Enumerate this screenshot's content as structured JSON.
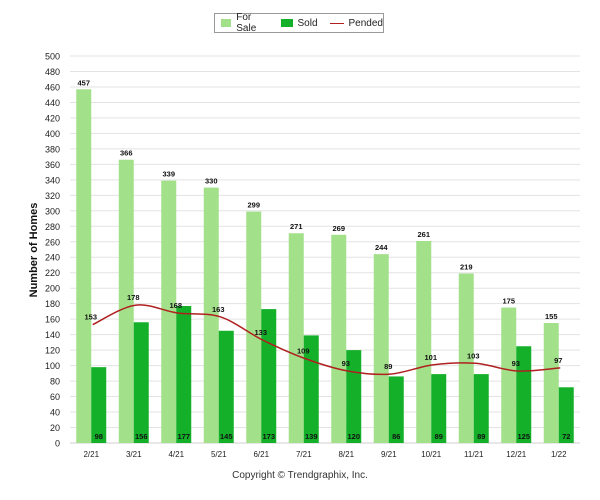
{
  "chart_data": {
    "type": "bar",
    "categories": [
      "2/21",
      "3/21",
      "4/21",
      "5/21",
      "6/21",
      "7/21",
      "8/21",
      "9/21",
      "10/21",
      "11/21",
      "12/21",
      "1/22"
    ],
    "series": [
      {
        "name": "For Sale",
        "type": "bar",
        "color": "#a3e08a",
        "values": [
          457,
          366,
          339,
          330,
          299,
          271,
          269,
          244,
          261,
          219,
          175,
          155
        ]
      },
      {
        "name": "Sold",
        "type": "bar",
        "color": "#14b02a",
        "values": [
          98,
          156,
          177,
          145,
          173,
          139,
          120,
          86,
          89,
          89,
          125,
          72
        ]
      },
      {
        "name": "Pended",
        "type": "line",
        "color": "#b02020",
        "values": [
          153,
          178,
          168,
          163,
          133,
          109,
          93,
          89,
          101,
          103,
          93,
          97
        ]
      }
    ],
    "ylabel": "Number of Homes",
    "ylim": [
      0,
      500
    ],
    "ytick_step": 20,
    "grid": true,
    "legend_position": "top-center"
  },
  "footer": {
    "copyright": "Copyright © Trendgraphix, Inc."
  }
}
